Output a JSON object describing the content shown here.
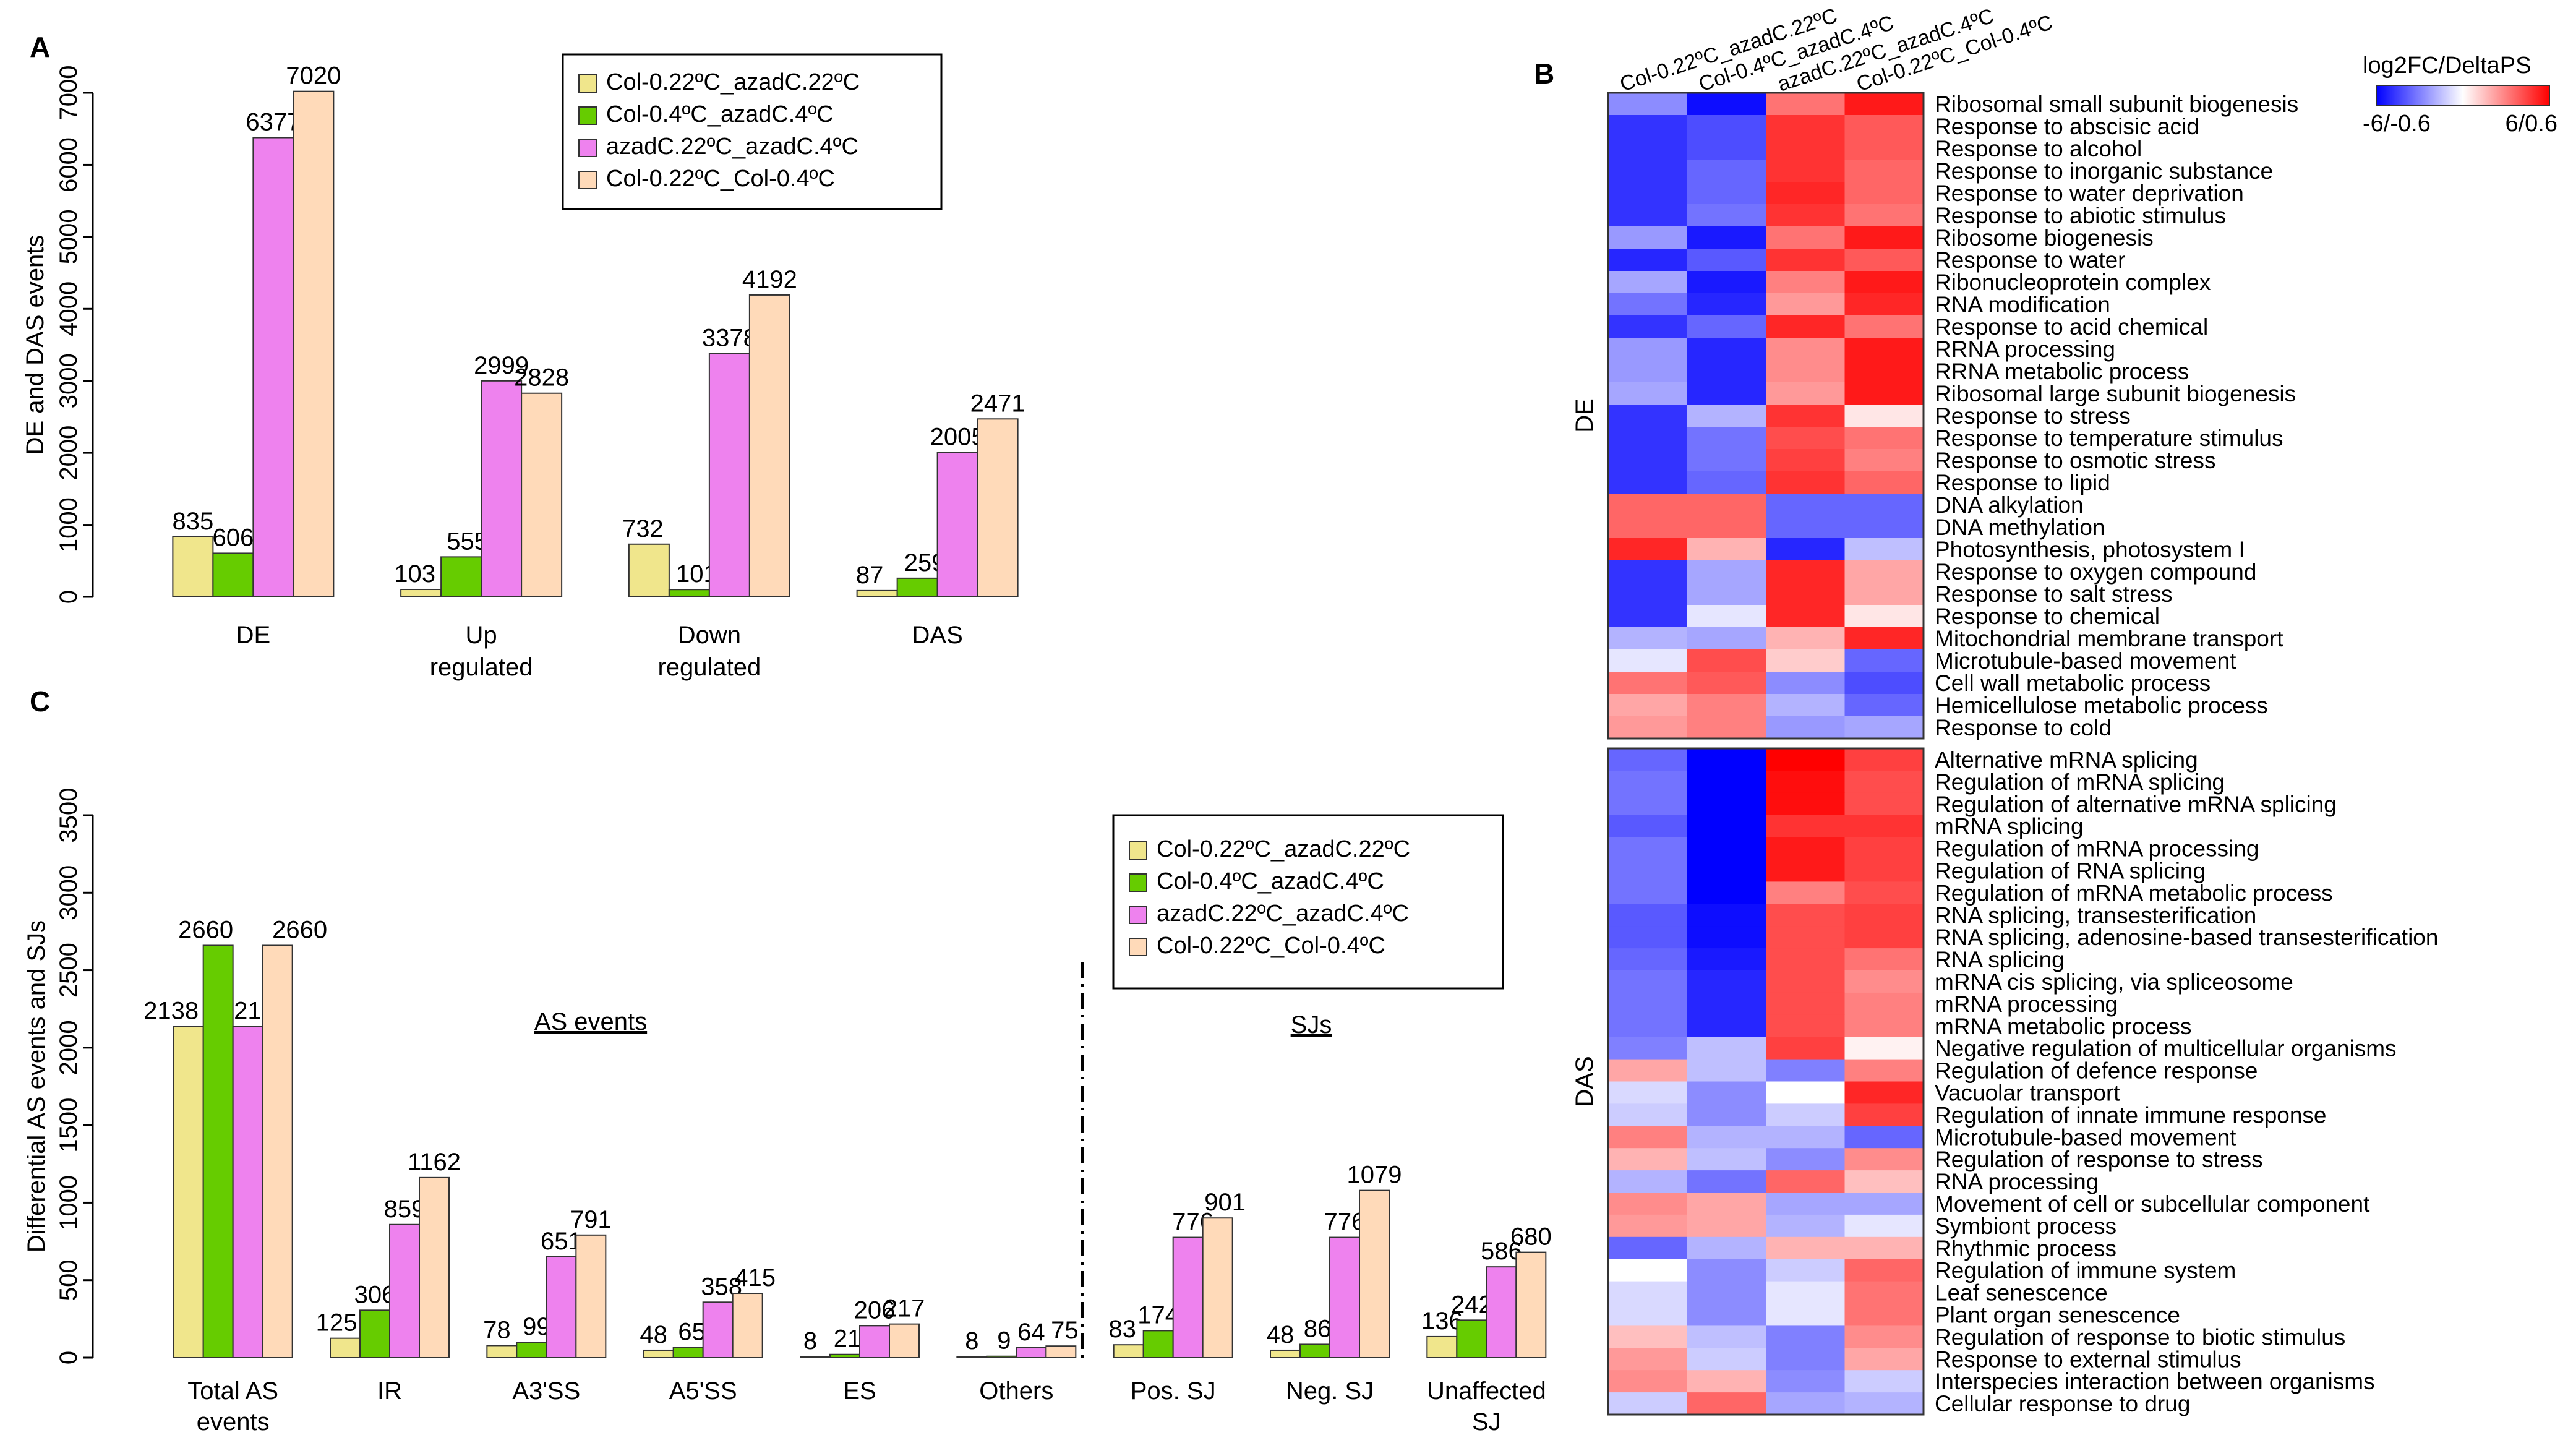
{
  "colors": {
    "series": [
      "#F0E68C",
      "#66CC00",
      "#EE82EE",
      "#FFDAB9"
    ],
    "heat_low": "#0000ff",
    "heat_mid": "#ffffff",
    "heat_high": "#ff0000"
  },
  "panels": {
    "A": {
      "letter": "A"
    },
    "B": {
      "letter": "B"
    },
    "C": {
      "letter": "C"
    }
  },
  "chart_data": [
    {
      "id": "A",
      "type": "bar",
      "title": "",
      "ylabel": "DE and DAS events",
      "xlabel": "",
      "ylim": [
        0,
        7000
      ],
      "yticks": [
        0,
        1000,
        2000,
        3000,
        4000,
        5000,
        6000,
        7000
      ],
      "categories": [
        "DE",
        "Up regulated",
        "Down regulated",
        "DAS"
      ],
      "category_lines": [
        [
          "DE"
        ],
        [
          "Up",
          "regulated"
        ],
        [
          "Down",
          "regulated"
        ],
        [
          "DAS"
        ]
      ],
      "series": [
        {
          "name": "Col-0.22ºC_azadC.22ºC",
          "values": [
            835,
            103,
            732,
            87
          ]
        },
        {
          "name": "Col-0.4ºC_azadC.4ºC",
          "values": [
            606,
            555,
            101,
            259
          ]
        },
        {
          "name": "azadC.22ºC_azadC.4ºC",
          "values": [
            6377,
            2999,
            3378,
            2005
          ]
        },
        {
          "name": "Col-0.22ºC_Col-0.4ºC",
          "values": [
            7020,
            2828,
            4192,
            2471
          ]
        }
      ],
      "legend": "top-right"
    },
    {
      "id": "C",
      "type": "bar",
      "title": "",
      "ylabel": "Differential AS events and SJs",
      "xlabel": "",
      "ylim": [
        0,
        3500
      ],
      "yticks": [
        0,
        500,
        1000,
        1500,
        2000,
        2500,
        3000,
        3500
      ],
      "categories": [
        "Total AS events",
        "IR",
        "A3'SS",
        "A5'SS",
        "ES",
        "Others",
        "Pos. SJ",
        "Neg. SJ",
        "Unaffected SJ"
      ],
      "category_lines": [
        [
          "Total AS",
          "events"
        ],
        [
          "IR"
        ],
        [
          "A3'SS"
        ],
        [
          "A5'SS"
        ],
        [
          "ES"
        ],
        [
          "Others"
        ],
        [
          "Pos. SJ"
        ],
        [
          "Neg.  SJ"
        ],
        [
          "Unaffected",
          "SJ"
        ]
      ],
      "series": [
        {
          "name": "Col-0.22ºC_azadC.22ºC",
          "values": [
            2138,
            125,
            78,
            48,
            8,
            8,
            83,
            48,
            136
          ]
        },
        {
          "name": "Col-0.4ºC_azadC.4ºC",
          "values": [
            2660,
            306,
            99,
            65,
            21,
            9,
            174,
            86,
            242
          ]
        },
        {
          "name": "azadC.22ºC_azadC.4ºC",
          "values": [
            2138,
            859,
            651,
            358,
            206,
            64,
            776,
            776,
            586
          ]
        },
        {
          "name": "Col-0.22ºC_Col-0.4ºC",
          "values": [
            2660,
            1162,
            791,
            415,
            217,
            75,
            901,
            1079,
            680
          ]
        }
      ],
      "annotations": {
        "as_events": "AS events",
        "sjs": "SJs"
      },
      "legend": "top-right"
    },
    {
      "id": "B",
      "type": "heatmap",
      "columns": [
        "Col-0.22ºC_azadC.22ºC",
        "Col-0.4ºC_azadC.4ºC",
        "azadC.22ºC_azadC.4ºC",
        "Col-0.22ºC_Col-0.4ºC"
      ],
      "colorbar": {
        "title": "log2FC/DeltaPS",
        "min_label": "-6/-0.6",
        "max_label": "6/0.6"
      },
      "groups": [
        {
          "name": "DE",
          "rows": [
            {
              "label": "Ribosomal small subunit biogenesis",
              "values": [
                -0.45,
                -0.95,
                0.55,
                0.9
              ]
            },
            {
              "label": "Response to abscisic acid",
              "values": [
                -0.8,
                -0.7,
                0.8,
                0.65
              ]
            },
            {
              "label": "Response to alcohol",
              "values": [
                -0.8,
                -0.7,
                0.8,
                0.65
              ]
            },
            {
              "label": "Response to inorganic substance",
              "values": [
                -0.8,
                -0.6,
                0.8,
                0.6
              ]
            },
            {
              "label": "Response to water deprivation",
              "values": [
                -0.8,
                -0.6,
                0.85,
                0.6
              ]
            },
            {
              "label": "Response to abiotic stimulus",
              "values": [
                -0.8,
                -0.55,
                0.8,
                0.55
              ]
            },
            {
              "label": "Ribosome biogenesis",
              "values": [
                -0.4,
                -0.9,
                0.55,
                0.9
              ]
            },
            {
              "label": "Response to water",
              "values": [
                -0.85,
                -0.65,
                0.8,
                0.65
              ]
            },
            {
              "label": "Ribonucleoprotein complex",
              "values": [
                -0.35,
                -0.9,
                0.5,
                0.9
              ]
            },
            {
              "label": "RNA modification",
              "values": [
                -0.55,
                -0.85,
                0.4,
                0.85
              ]
            },
            {
              "label": "Response to acid chemical",
              "values": [
                -0.8,
                -0.6,
                0.85,
                0.55
              ]
            },
            {
              "label": "RRNA processing",
              "values": [
                -0.4,
                -0.85,
                0.45,
                0.9
              ]
            },
            {
              "label": "RRNA metabolic process",
              "values": [
                -0.4,
                -0.85,
                0.45,
                0.9
              ]
            },
            {
              "label": "Ribosomal large subunit biogenesis",
              "values": [
                -0.35,
                -0.85,
                0.4,
                0.9
              ]
            },
            {
              "label": "Response to stress",
              "values": [
                -0.8,
                -0.3,
                0.8,
                0.1
              ]
            },
            {
              "label": "Response to temperature stimulus",
              "values": [
                -0.8,
                -0.55,
                0.7,
                0.55
              ]
            },
            {
              "label": "Response to osmotic stress",
              "values": [
                -0.8,
                -0.55,
                0.75,
                0.5
              ]
            },
            {
              "label": "Response to lipid",
              "values": [
                -0.8,
                -0.6,
                0.8,
                0.6
              ]
            },
            {
              "label": "DNA alkylation",
              "values": [
                0.6,
                0.6,
                -0.6,
                -0.6
              ]
            },
            {
              "label": "DNA methylation",
              "values": [
                0.6,
                0.6,
                -0.6,
                -0.6
              ]
            },
            {
              "label": "Photosynthesis, photosystem I",
              "values": [
                0.85,
                0.3,
                -0.85,
                -0.25
              ]
            },
            {
              "label": "Response to oxygen compound",
              "values": [
                -0.8,
                -0.35,
                0.85,
                0.35
              ]
            },
            {
              "label": "Response to salt stress",
              "values": [
                -0.8,
                -0.35,
                0.85,
                0.35
              ]
            },
            {
              "label": "Response to chemical",
              "values": [
                -0.8,
                -0.1,
                0.85,
                0.1
              ]
            },
            {
              "label": "Mitochondrial membrane transport",
              "values": [
                -0.3,
                -0.35,
                0.3,
                0.85
              ]
            },
            {
              "label": "Microtubule-based movement",
              "values": [
                -0.1,
                0.7,
                0.2,
                -0.6
              ]
            },
            {
              "label": "Cell wall metabolic process",
              "values": [
                0.55,
                0.65,
                -0.45,
                -0.7
              ]
            },
            {
              "label": "Hemicellulose metabolic process",
              "values": [
                0.35,
                0.5,
                -0.3,
                -0.6
              ]
            },
            {
              "label": "Response to cold",
              "values": [
                0.4,
                0.5,
                -0.4,
                -0.35
              ]
            }
          ]
        },
        {
          "name": "DAS",
          "rows": [
            {
              "label": "Alternative mRNA splicing",
              "values": [
                -0.6,
                -1.0,
                1.0,
                0.75
              ]
            },
            {
              "label": "Regulation of mRNA splicing",
              "values": [
                -0.55,
                -1.0,
                0.95,
                0.7
              ]
            },
            {
              "label": "Regulation of alternative mRNA splicing",
              "values": [
                -0.55,
                -1.0,
                0.95,
                0.7
              ]
            },
            {
              "label": "mRNA splicing",
              "values": [
                -0.65,
                -1.0,
                0.8,
                0.8
              ]
            },
            {
              "label": "Regulation of mRNA processing",
              "values": [
                -0.55,
                -1.0,
                0.9,
                0.75
              ]
            },
            {
              "label": "Regulation of RNA splicing",
              "values": [
                -0.55,
                -1.0,
                0.9,
                0.75
              ]
            },
            {
              "label": "Regulation of mRNA metabolic process",
              "values": [
                -0.55,
                -1.0,
                0.5,
                0.7
              ]
            },
            {
              "label": "RNA splicing, transesterification",
              "values": [
                -0.65,
                -0.95,
                0.7,
                0.75
              ]
            },
            {
              "label": "RNA splicing, adenosine-based transesterification",
              "values": [
                -0.65,
                -0.95,
                0.7,
                0.75
              ]
            },
            {
              "label": "RNA splicing",
              "values": [
                -0.6,
                -0.9,
                0.7,
                0.55
              ]
            },
            {
              "label": "mRNA cis splicing, via spliceosome",
              "values": [
                -0.55,
                -0.85,
                0.7,
                0.45
              ]
            },
            {
              "label": "mRNA processing",
              "values": [
                -0.55,
                -0.85,
                0.7,
                0.5
              ]
            },
            {
              "label": "mRNA metabolic process",
              "values": [
                -0.55,
                -0.85,
                0.7,
                0.5
              ]
            },
            {
              "label": "Negative regulation of multicellular organisms",
              "values": [
                -0.5,
                -0.25,
                0.75,
                0.05
              ]
            },
            {
              "label": "Regulation of defence response",
              "values": [
                0.35,
                -0.25,
                -0.5,
                0.5
              ]
            },
            {
              "label": "Vacuolar transport",
              "values": [
                -0.15,
                -0.45,
                0.0,
                0.85
              ]
            },
            {
              "label": "Regulation of innate immune response",
              "values": [
                -0.2,
                -0.45,
                -0.2,
                0.75
              ]
            },
            {
              "label": "Microtubule-based movement",
              "values": [
                0.5,
                -0.3,
                -0.3,
                -0.6
              ]
            },
            {
              "label": "Regulation of response to stress",
              "values": [
                0.3,
                -0.25,
                -0.45,
                0.45
              ]
            },
            {
              "label": "RNA processing",
              "values": [
                -0.3,
                -0.55,
                0.6,
                0.25
              ]
            },
            {
              "label": "Movement of cell or subcellular component",
              "values": [
                0.45,
                0.35,
                -0.35,
                -0.35
              ]
            },
            {
              "label": "Symbiont process",
              "values": [
                0.4,
                0.35,
                -0.3,
                -0.1
              ]
            },
            {
              "label": "Rhythmic process",
              "values": [
                -0.6,
                -0.3,
                0.3,
                0.3
              ]
            },
            {
              "label": "Regulation of immune system",
              "values": [
                0.0,
                -0.45,
                -0.2,
                0.6
              ]
            },
            {
              "label": "Leaf senescence",
              "values": [
                -0.15,
                -0.45,
                -0.1,
                0.55
              ]
            },
            {
              "label": "Plant organ senescence",
              "values": [
                -0.15,
                -0.45,
                -0.1,
                0.55
              ]
            },
            {
              "label": "Regulation of response to biotic stimulus",
              "values": [
                0.25,
                -0.25,
                -0.5,
                0.45
              ]
            },
            {
              "label": "Response to external stimulus",
              "values": [
                0.4,
                -0.2,
                -0.5,
                0.35
              ]
            },
            {
              "label": "Interspecies interaction between organisms",
              "values": [
                0.45,
                0.3,
                -0.45,
                -0.2
              ]
            },
            {
              "label": "Cellular response to drug",
              "values": [
                -0.2,
                0.6,
                -0.35,
                -0.3
              ]
            }
          ]
        }
      ]
    }
  ]
}
